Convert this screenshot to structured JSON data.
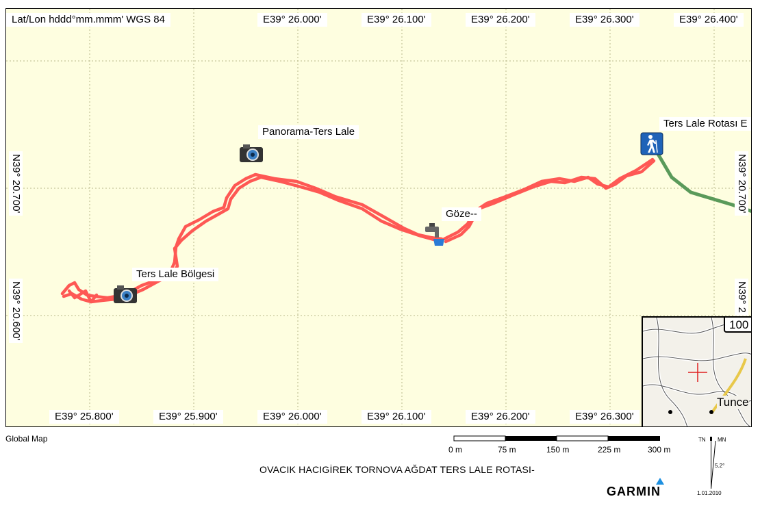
{
  "map": {
    "coord_format_label": "Lat/Lon hddd°mm.mmm' WGS 84",
    "top_ticks": [
      "E39° 26.000'",
      "E39° 26.100'",
      "E39° 26.200'",
      "E39° 26.300'",
      "E39° 26.400'"
    ],
    "bottom_ticks": [
      "E39° 25.800'",
      "E39° 25.900'",
      "E39° 26.000'",
      "E39° 26.100'",
      "E39° 26.200'",
      "E39° 26.300'"
    ],
    "left_ticks": [
      "N39° 20.700'",
      "N39° 20.600'"
    ],
    "right_ticks": [
      "N39° 20.700'",
      "N39° 2"
    ],
    "waypoints": [
      {
        "name": "Panorama-Ters Lale",
        "icon": "camera-icon"
      },
      {
        "name": "Ters Lale Bölgesi",
        "icon": "camera-icon"
      },
      {
        "name": "Göze--",
        "icon": "water-tap-icon"
      },
      {
        "name": "Ters Lale Rotası E",
        "icon": "hiker-icon"
      }
    ],
    "track_color": "#ff3c3c",
    "route_color": "#5a9a5a"
  },
  "inset": {
    "zoom_label": "100",
    "place_label": "Tunce"
  },
  "footer": {
    "source": "Global Map",
    "title": "OVACIK HACIGİREK TORNOVA AĞDAT TERS LALE ROTASI-",
    "brand": "GARMIN",
    "scale_labels": [
      "0 m",
      "75 m",
      "150 m",
      "225 m",
      "300 m"
    ],
    "north": {
      "tn": "TN",
      "mn": "MN",
      "declination": "5.2°",
      "date": "1.01.2010"
    }
  }
}
